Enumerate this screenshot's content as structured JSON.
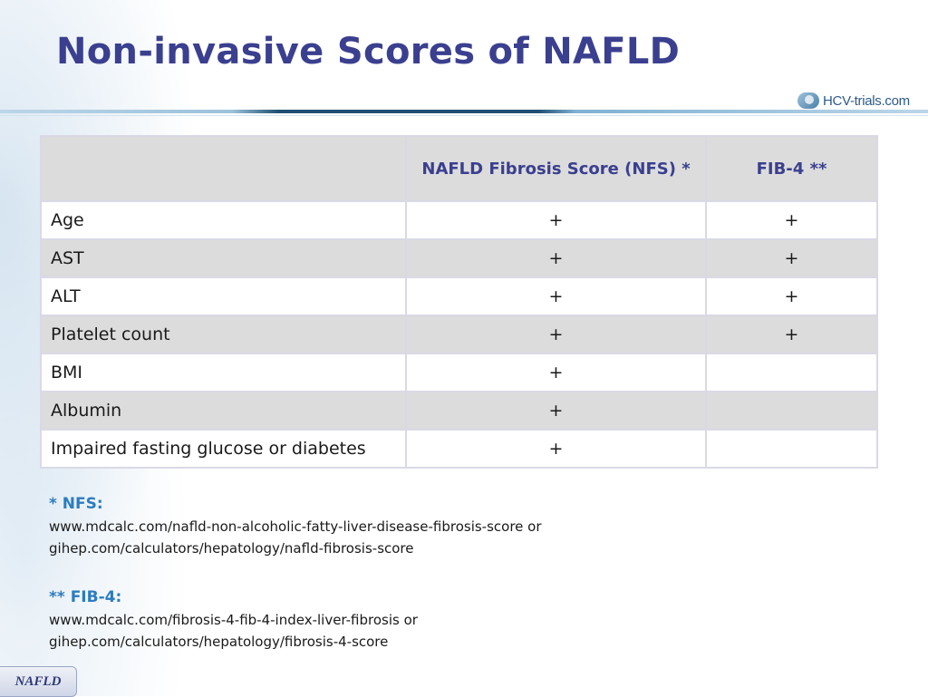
{
  "slide": {
    "title": "Non-invasive Scores of NAFLD",
    "logo_text": "HCV-trials.com",
    "footer_tag": "NAFLD"
  },
  "table": {
    "headers": [
      "",
      "NAFLD Fibrosis Score (NFS) *",
      "FIB-4 **"
    ],
    "rows": [
      {
        "label": "Age",
        "nfs": "+",
        "fib4": "+"
      },
      {
        "label": "AST",
        "nfs": "+",
        "fib4": "+"
      },
      {
        "label": "ALT",
        "nfs": "+",
        "fib4": "+"
      },
      {
        "label": "Platelet count",
        "nfs": "+",
        "fib4": "+"
      },
      {
        "label": "BMI",
        "nfs": "+",
        "fib4": ""
      },
      {
        "label": "Albumin",
        "nfs": "+",
        "fib4": ""
      },
      {
        "label": "Impaired fasting glucose or diabetes",
        "nfs": "+",
        "fib4": ""
      }
    ]
  },
  "notes": [
    {
      "heading": "* NFS:",
      "lines": [
        "www.mdcalc.com/nafld-non-alcoholic-fatty-liver-disease-fibrosis-score or",
        "gihep.com/calculators/hepatology/nafld-fibrosis-score"
      ]
    },
    {
      "heading": "** FIB-4:",
      "lines": [
        "www.mdcalc.com/fibrosis-4-fib-4-index-liver-fibrosis or",
        "gihep.com/calculators/hepatology/fibrosis-4-score"
      ]
    }
  ],
  "colors": {
    "title": "#3a3f8f",
    "note_heading": "#2b7cc0",
    "row_shade": "#dcdcdc"
  }
}
